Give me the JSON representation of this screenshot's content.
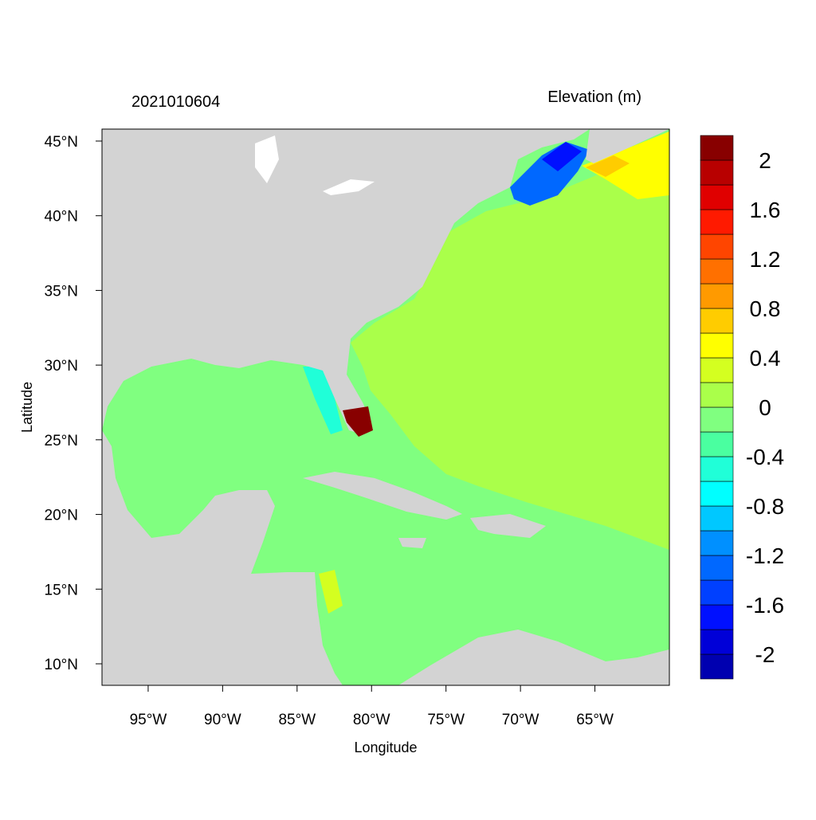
{
  "map": {
    "title_left": "2021010604",
    "title_right": "Elevation (m)",
    "x_label": "Longitude",
    "y_label": "Latitude",
    "xlim": [
      -98.1,
      -60
    ],
    "ylim": [
      8.56,
      45.8
    ],
    "xticks": [
      {
        "value": -95,
        "label": "95°W"
      },
      {
        "value": -90,
        "label": "90°W"
      },
      {
        "value": -85,
        "label": "85°W"
      },
      {
        "value": -80,
        "label": "80°W"
      },
      {
        "value": -75,
        "label": "75°W"
      },
      {
        "value": -70,
        "label": "70°W"
      },
      {
        "value": -65,
        "label": "65°W"
      }
    ],
    "yticks": [
      {
        "value": 10,
        "label": "10°N"
      },
      {
        "value": 15,
        "label": "15°N"
      },
      {
        "value": 20,
        "label": "20°N"
      },
      {
        "value": 25,
        "label": "25°N"
      },
      {
        "value": 30,
        "label": "30°N"
      },
      {
        "value": 35,
        "label": "35°N"
      },
      {
        "value": 40,
        "label": "40°N"
      },
      {
        "value": 45,
        "label": "45°N"
      }
    ],
    "colorbar": {
      "lim": [
        -2.2,
        2.2
      ],
      "colors": [
        "#0000b0",
        "#0000d8",
        "#0010ff",
        "#0040ff",
        "#0068ff",
        "#0090ff",
        "#00c8ff",
        "#00ffff",
        "#20ffd8",
        "#4affa0",
        "#80ff80",
        "#aaff4a",
        "#d4ff20",
        "#ffff00",
        "#ffcc00",
        "#ff9a00",
        "#ff7000",
        "#ff4500",
        "#ff1a00",
        "#e00000",
        "#b80000",
        "#880000"
      ],
      "ticks": [
        -2,
        -1.6,
        -1.2,
        -0.8,
        -0.4,
        0,
        0.4,
        0.8,
        1.2,
        1.6,
        2
      ]
    }
  }
}
